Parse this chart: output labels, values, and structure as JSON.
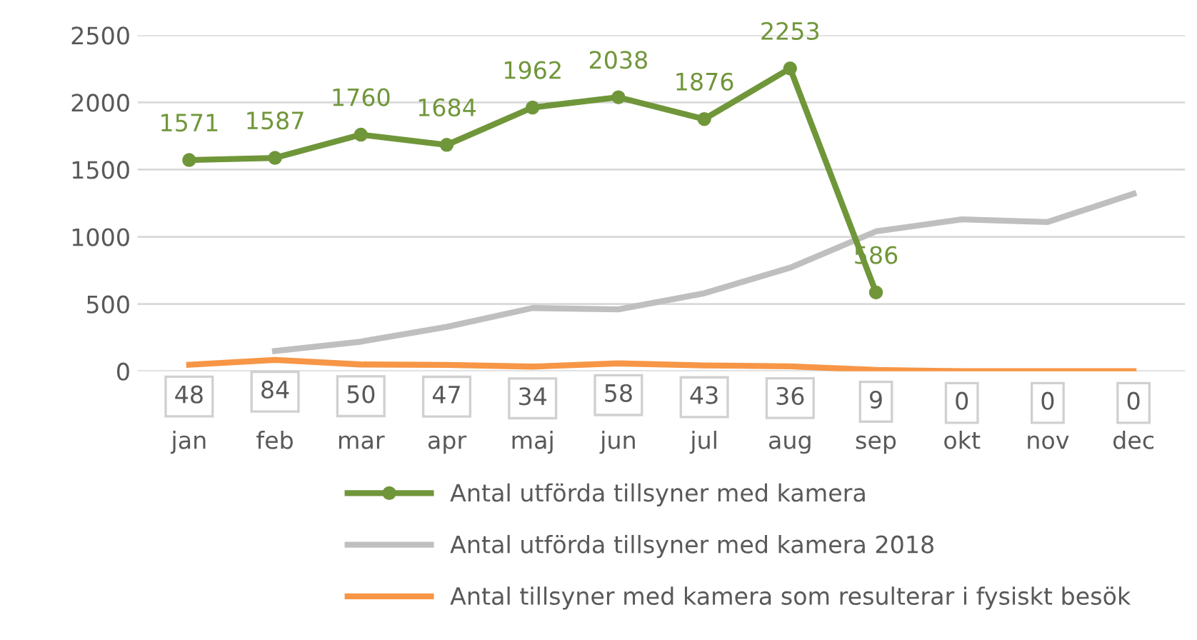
{
  "chart_data": {
    "type": "line",
    "categories": [
      "jan",
      "feb",
      "mar",
      "apr",
      "maj",
      "jun",
      "jul",
      "aug",
      "sep",
      "okt",
      "nov",
      "dec"
    ],
    "series": [
      {
        "name": "Antal utförda tillsyner med kamera",
        "color": "#70963a",
        "marker": "circle",
        "values": [
          1571,
          1587,
          1760,
          1684,
          1962,
          2038,
          1876,
          2253,
          586,
          null,
          null,
          null
        ],
        "value_labels": [
          "1571",
          "1587",
          "1760",
          "1684",
          "1962",
          "2038",
          "1876",
          "2253",
          "586",
          null,
          null,
          null
        ]
      },
      {
        "name": "Antal utförda tillsyner med kamera 2018",
        "color": "#bfbfbf",
        "marker": "none",
        "values": [
          null,
          150,
          220,
          330,
          470,
          460,
          580,
          770,
          1040,
          1130,
          1110,
          1320
        ]
      },
      {
        "name": "Antal tillsyner med kamera som resulterar i fysiskt besök",
        "color": "#f79646",
        "marker": "none",
        "values": [
          48,
          84,
          50,
          47,
          34,
          58,
          43,
          36,
          9,
          0,
          0,
          0
        ],
        "value_labels": [
          "48",
          "84",
          "50",
          "47",
          "34",
          "58",
          "43",
          "36",
          "9",
          "0",
          "0",
          "0"
        ]
      }
    ],
    "ylim": [
      0,
      2500
    ],
    "yticks": [
      0,
      500,
      1000,
      1500,
      2000,
      2500
    ],
    "grid": "y",
    "legend": "bottom",
    "line_style": "solid"
  }
}
